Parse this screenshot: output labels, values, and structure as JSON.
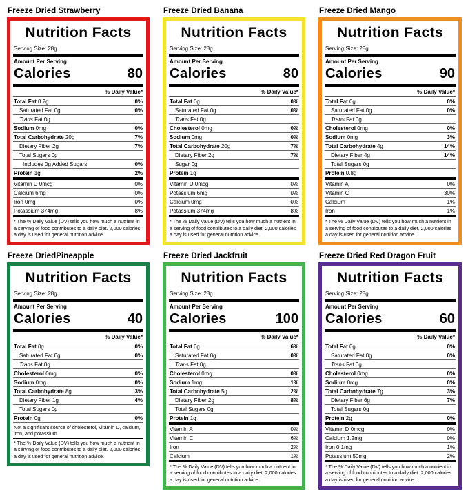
{
  "common": {
    "title": "Nutrition Facts",
    "serving_size": "Serving Size: 28g",
    "amount_per_serving": "Amount Per Serving",
    "calories_label": "Calories",
    "daily_value_header": "% Daily Value*",
    "footnote": "* The % Daily Value (DV) tells you how much a nutrient in a serving of food contributes to a daily diet. 2,000 calories a day is used for general nutrition advice."
  },
  "labels": [
    {
      "caption": "Freeze Dried Strawberry",
      "border_color": "#e01a1a",
      "calories": "80",
      "rows": [
        {
          "n": "Total Fat",
          "a": "0.2g",
          "dv": "0%",
          "s": "main"
        },
        {
          "n": "Saturated Fat",
          "a": "0g",
          "dv": "0%",
          "s": "sub"
        },
        {
          "n": "Trans",
          "a": "Fat 0g",
          "dv": "",
          "s": "sub-italic"
        },
        {
          "n": "Sodium",
          "a": "0mg",
          "dv": "0%",
          "s": "main"
        },
        {
          "n": "Total Carbohydrate",
          "a": "20g",
          "dv": "7%",
          "s": "main"
        },
        {
          "n": "Dietary Fiber",
          "a": "2g",
          "dv": "7%",
          "s": "sub"
        },
        {
          "n": "Total Sugars",
          "a": "0g",
          "dv": "",
          "s": "sub"
        },
        {
          "n": "Includes 0g Added Sugars",
          "a": "",
          "dv": "0%",
          "s": "sub2"
        },
        {
          "n": "Protein",
          "a": "1g",
          "dv": "2%",
          "s": "main"
        }
      ],
      "vitamins": [
        {
          "n": "Vitamin D 0mcg",
          "dv": "0%"
        },
        {
          "n": "Calcium 6mg",
          "dv": "0%"
        },
        {
          "n": "Iron 0mg",
          "dv": "0%"
        },
        {
          "n": "Potassium 374mg",
          "dv": "8%"
        }
      ],
      "note": ""
    },
    {
      "caption": "Freeze Dried Banana",
      "border_color": "#f3e32c",
      "calories": "80",
      "rows": [
        {
          "n": "Total Fat",
          "a": "0g",
          "dv": "0%",
          "s": "main"
        },
        {
          "n": "Saturated Fat",
          "a": "0g",
          "dv": "0%",
          "s": "sub"
        },
        {
          "n": "Trans",
          "a": "Fat 0g",
          "dv": "",
          "s": "sub-italic"
        },
        {
          "n": "Cholesterol",
          "a": "0mg",
          "dv": "0%",
          "s": "main"
        },
        {
          "n": "Sodium",
          "a": "0mg",
          "dv": "0%",
          "s": "main"
        },
        {
          "n": "Total Carbohydrate",
          "a": "20g",
          "dv": "7%",
          "s": "main"
        },
        {
          "n": "Dietary Fiber",
          "a": "2g",
          "dv": "7%",
          "s": "sub"
        },
        {
          "n": "Sugar",
          "a": "0g",
          "dv": "",
          "s": "sub"
        },
        {
          "n": "Protein",
          "a": "1g",
          "dv": "",
          "s": "main"
        }
      ],
      "vitamins": [
        {
          "n": "Vitamin D 0mcg",
          "dv": "0%"
        },
        {
          "n": "Potassium 6mg",
          "dv": "0%"
        },
        {
          "n": "Calcium 0mg",
          "dv": "0%"
        },
        {
          "n": "Potassium 374mg",
          "dv": "8%"
        }
      ],
      "note": ""
    },
    {
      "caption": "Freeze Dried Mango",
      "border_color": "#ee8d20",
      "calories": "90",
      "rows": [
        {
          "n": "Total Fat",
          "a": "0g",
          "dv": "0%",
          "s": "main"
        },
        {
          "n": "Saturated Fat",
          "a": "0g",
          "dv": "0%",
          "s": "sub"
        },
        {
          "n": "Trans",
          "a": "Fat 0g",
          "dv": "",
          "s": "sub-italic"
        },
        {
          "n": "Cholesterol",
          "a": "0mg",
          "dv": "0%",
          "s": "main"
        },
        {
          "n": "Sodium",
          "a": "0mg",
          "dv": "3%",
          "s": "main"
        },
        {
          "n": "Total Carbohydrate",
          "a": "4g",
          "dv": "14%",
          "s": "main"
        },
        {
          "n": "Dietary Fiber",
          "a": "4g",
          "dv": "14%",
          "s": "sub"
        },
        {
          "n": "Total Sugars",
          "a": "0g",
          "dv": "",
          "s": "sub"
        },
        {
          "n": "Protein",
          "a": "0.8g",
          "dv": "",
          "s": "main"
        }
      ],
      "vitamins": [
        {
          "n": "Vitamin A",
          "dv": "0%"
        },
        {
          "n": "Vitamin C",
          "dv": "30%"
        },
        {
          "n": "Calcium",
          "dv": "1%"
        },
        {
          "n": "Iron",
          "dv": "1%"
        }
      ],
      "note": ""
    },
    {
      "caption": "Freeze DriedPineapple",
      "border_color": "#1b8047",
      "calories": "40",
      "rows": [
        {
          "n": "Total Fat",
          "a": "0g",
          "dv": "0%",
          "s": "main"
        },
        {
          "n": "Saturated Fat",
          "a": "0g",
          "dv": "0%",
          "s": "sub"
        },
        {
          "n": "Trans",
          "a": "Fat 0g",
          "dv": "",
          "s": "sub-italic"
        },
        {
          "n": "Cholesterol",
          "a": "0mg",
          "dv": "0%",
          "s": "main"
        },
        {
          "n": "Sodium",
          "a": "0mg",
          "dv": "0%",
          "s": "main"
        },
        {
          "n": "Total Carbohydrate",
          "a": "8g",
          "dv": "3%",
          "s": "main"
        },
        {
          "n": "Dietary Fiber",
          "a": "1g",
          "dv": "4%",
          "s": "sub"
        },
        {
          "n": "Total Sugars",
          "a": "0g",
          "dv": "",
          "s": "sub"
        },
        {
          "n": "Protein",
          "a": "0g",
          "dv": "0%",
          "s": "main"
        }
      ],
      "vitamins": [],
      "note": "Not a significant source of cholesterol, vitamin D, calcium, iron, and potassium"
    },
    {
      "caption": "Freeze Dried Jackfruit",
      "border_color": "#47b14d",
      "calories": "100",
      "rows": [
        {
          "n": "Total Fat",
          "a": "6g",
          "dv": "6%",
          "s": "main"
        },
        {
          "n": "Saturated Fat",
          "a": "0g",
          "dv": "0%",
          "s": "sub"
        },
        {
          "n": "Trans",
          "a": "Fat 0g",
          "dv": "",
          "s": "sub-italic"
        },
        {
          "n": "Cholesterol",
          "a": "0mg",
          "dv": "0%",
          "s": "main"
        },
        {
          "n": "Sodium",
          "a": "1mg",
          "dv": "1%",
          "s": "main"
        },
        {
          "n": "Total Carbohydrate",
          "a": "5g",
          "dv": "2%",
          "s": "main"
        },
        {
          "n": "Dietary Fiber",
          "a": "2g",
          "dv": "8%",
          "s": "sub"
        },
        {
          "n": "Total Sugars",
          "a": "0g",
          "dv": "",
          "s": "sub"
        },
        {
          "n": "Protein",
          "a": "1g",
          "dv": "",
          "s": "main"
        }
      ],
      "vitamins": [
        {
          "n": "Vitamin A",
          "dv": "0%"
        },
        {
          "n": "Vitamin C",
          "dv": "6%"
        },
        {
          "n": "Iron",
          "dv": "2%"
        },
        {
          "n": "Calcium",
          "dv": "1%"
        }
      ],
      "note": ""
    },
    {
      "caption": "Freeze Dried Red Dragon Fruit",
      "border_color": "#5c2d91",
      "calories": "60",
      "rows": [
        {
          "n": "Total Fat",
          "a": "0g",
          "dv": "0%",
          "s": "main"
        },
        {
          "n": "Saturated Fat",
          "a": "0g",
          "dv": "0%",
          "s": "sub"
        },
        {
          "n": "Trans",
          "a": "Fat 0g",
          "dv": "",
          "s": "sub-italic"
        },
        {
          "n": "Cholesterol",
          "a": "0mg",
          "dv": "0%",
          "s": "main"
        },
        {
          "n": "Sodium",
          "a": "0mg",
          "dv": "0%",
          "s": "main"
        },
        {
          "n": "Total Carbohydrate",
          "a": "7g",
          "dv": "3%",
          "s": "main"
        },
        {
          "n": "Dietary Fiber",
          "a": "6g",
          "dv": "7%",
          "s": "sub"
        },
        {
          "n": "Total Sugars",
          "a": "0g",
          "dv": "",
          "s": "sub"
        },
        {
          "n": "Protein",
          "a": "2g",
          "dv": "0%",
          "s": "main"
        }
      ],
      "vitamins": [
        {
          "n": "Vitamin D 0mcg",
          "dv": "0%"
        },
        {
          "n": "Calcium 1.2mg",
          "dv": "0%"
        },
        {
          "n": "Iron 0.1mg",
          "dv": "1%"
        },
        {
          "n": "Potassium 50mg",
          "dv": "2%"
        }
      ],
      "note": ""
    }
  ]
}
